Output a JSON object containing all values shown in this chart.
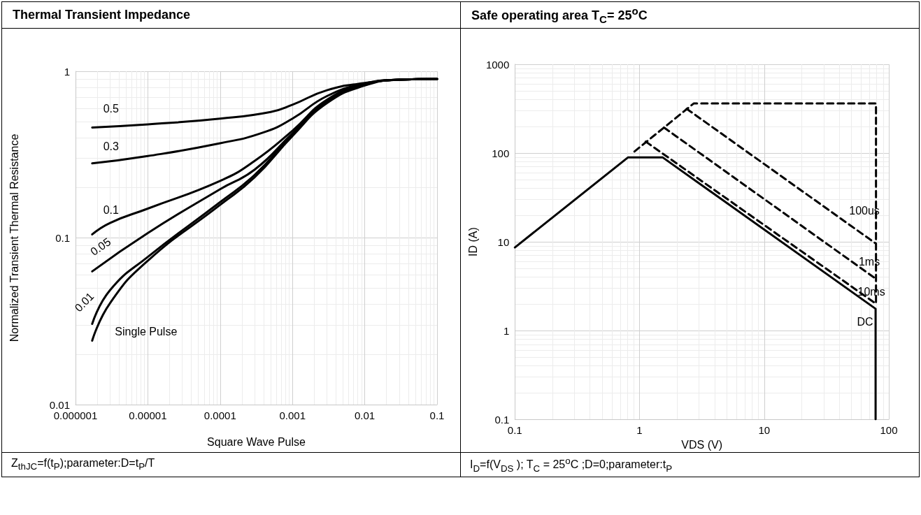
{
  "chart_data": [
    {
      "type": "line",
      "title": "Thermal Transient Impedance",
      "xlabel": "Square Wave Pulse",
      "ylabel": "Normalized Transient Thermal Resistance",
      "annotations": [
        "Z$_{thJC}$=f(t$_{P}$);parameter:D=t$_{P}$/T"
      ],
      "log": "xy",
      "xlim": [
        1e-06,
        0.1
      ],
      "ylim": [
        0.01,
        1
      ],
      "xticks": [
        {
          "value": 1e-06,
          "label": "0.000001"
        },
        {
          "value": 1e-05,
          "label": "0.00001"
        },
        0.0001,
        0.001,
        0.01,
        0.1
      ],
      "yticks": [
        0.01,
        0.1,
        1
      ],
      "grid": true,
      "legend": false,
      "marker": "none",
      "line_style": "solid",
      "series": [
        {
          "name": "0.5",
          "color": "#000000",
          "x": [
            1.7e-06,
            1e-05,
            0.0001,
            0.0005,
            0.001,
            0.003,
            0.01,
            0.03,
            0.1
          ],
          "values": [
            0.46,
            0.48,
            0.52,
            0.57,
            0.63,
            0.77,
            0.85,
            0.89,
            0.9
          ]
        },
        {
          "name": "0.3",
          "color": "#000000",
          "x": [
            1.7e-06,
            1e-05,
            0.0001,
            0.0004,
            0.001,
            0.003,
            0.01,
            0.03,
            0.1
          ],
          "values": [
            0.28,
            0.31,
            0.37,
            0.43,
            0.52,
            0.71,
            0.845,
            0.89,
            0.9
          ]
        },
        {
          "name": "0.1",
          "color": "#000000",
          "x": [
            1.7e-06,
            3e-06,
            1e-05,
            0.0001,
            0.0003,
            0.001,
            0.003,
            0.01,
            0.03,
            0.1
          ],
          "values": [
            0.105,
            0.123,
            0.15,
            0.22,
            0.29,
            0.44,
            0.675,
            0.836,
            0.89,
            0.9
          ]
        },
        {
          "name": "0.05",
          "color": "#000000",
          "x": [
            1.7e-06,
            1e-05,
            0.0001,
            0.0003,
            0.001,
            0.003,
            0.01,
            0.03,
            0.1
          ],
          "values": [
            0.063,
            0.107,
            0.196,
            0.257,
            0.424,
            0.663,
            0.83,
            0.89,
            0.9
          ]
        },
        {
          "name": "0.01",
          "color": "#000000",
          "x": [
            1.7e-06,
            3e-06,
            1e-05,
            0.0001,
            0.0003,
            0.001,
            0.003,
            0.01,
            0.03,
            0.1
          ],
          "values": [
            0.0305,
            0.0486,
            0.077,
            0.164,
            0.239,
            0.416,
            0.652,
            0.827,
            0.89,
            0.9
          ]
        },
        {
          "name": "Single Pulse",
          "color": "#000000",
          "x": [
            1.7e-06,
            3e-06,
            1e-05,
            0.0001,
            0.0003,
            0.001,
            0.003,
            0.01,
            0.03,
            0.1
          ],
          "values": [
            0.0242,
            0.0406,
            0.073,
            0.158,
            0.231,
            0.409,
            0.644,
            0.821,
            0.89,
            0.9
          ]
        }
      ]
    },
    {
      "type": "line",
      "title": "Safe operating area T$_{C}$= 25$^{o}$C",
      "xlabel": "VDS (V)",
      "ylabel": "ID (A)",
      "annotations": [
        "I$_{D}$=f(V$_{DS}$ ); T$_{C}$ = 25$^{o}$C ;D=0;parameter:t$_{P}$"
      ],
      "log": "xy",
      "xlim": [
        0.1,
        100
      ],
      "ylim": [
        0.1,
        1000
      ],
      "xticks": [
        0.1,
        1,
        10,
        100
      ],
      "yticks": [
        0.1,
        1,
        10,
        100,
        1000
      ],
      "grid": true,
      "legend": false,
      "marker": "none",
      "series": [
        {
          "name": "DC",
          "color": "#000000",
          "line_style": "solid",
          "x": [
            0.1,
            0.81,
            1.53,
            78.3,
            78.3
          ],
          "values": [
            8.65,
            89.5,
            89.5,
            1.76,
            0.1
          ]
        },
        {
          "name": "10ms",
          "color": "#000000",
          "line_style": "dashed",
          "x": [
            1.12,
            78.3
          ],
          "values": [
            134.6,
            2.02
          ]
        },
        {
          "name": "1ms",
          "color": "#000000",
          "line_style": "dashed",
          "x": [
            1.57,
            78.3
          ],
          "values": [
            194,
            3.85
          ]
        },
        {
          "name": "100us",
          "color": "#000000",
          "line_style": "dashed",
          "x": [
            2.39,
            78.3
          ],
          "values": [
            315,
            9.6
          ]
        },
        {
          "color": "#000000",
          "line_style": "dashed",
          "x": [
            0.91,
            2.72,
            78.9,
            78.9
          ],
          "values": [
            104,
            362,
            362,
            1.95
          ]
        }
      ]
    }
  ]
}
